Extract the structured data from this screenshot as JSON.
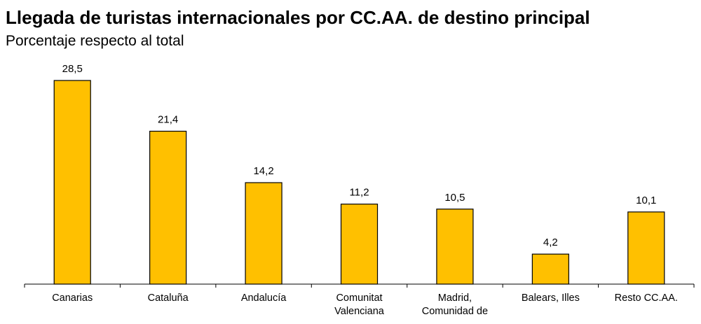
{
  "chart_data": {
    "type": "bar",
    "title": "Llegada de turistas internacionales por CC.AA. de destino principal",
    "subtitle": "Porcentaje respecto al total",
    "categories": [
      [
        "Canarias"
      ],
      [
        "Cataluña"
      ],
      [
        "Andalucía"
      ],
      [
        "Comunitat",
        "Valenciana"
      ],
      [
        "Madrid,",
        "Comunidad de"
      ],
      [
        "Balears, Illes"
      ],
      [
        "Resto CC.AA."
      ]
    ],
    "values": [
      28.5,
      21.4,
      14.2,
      11.2,
      10.5,
      4.2,
      10.1
    ],
    "value_labels": [
      "28,5",
      "21,4",
      "14,2",
      "11,2",
      "10,5",
      "4,2",
      "10,1"
    ],
    "ylim": [
      0,
      28.5
    ],
    "bar_color": "#FFC000",
    "grid": false,
    "legend": "none"
  }
}
